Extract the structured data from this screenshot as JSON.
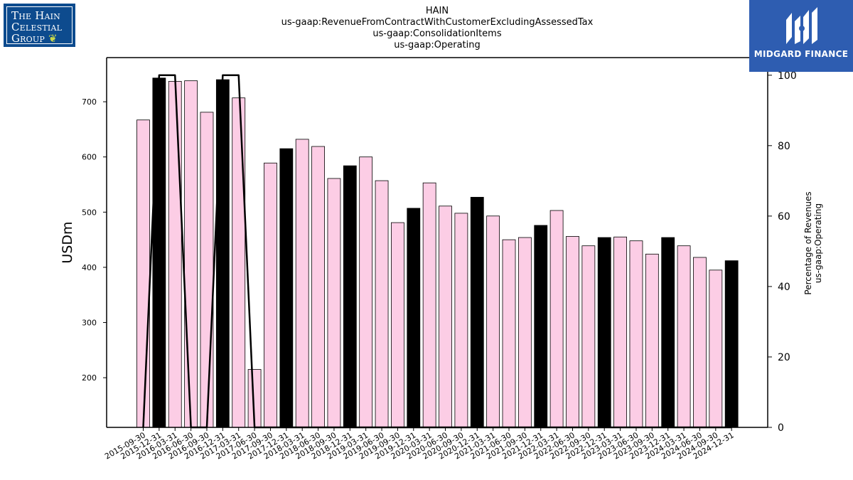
{
  "header": {
    "title_lines": [
      "HAIN",
      "us-gaap:RevenueFromContractWithCustomerExcludingAssessedTax",
      "us-gaap:ConsolidationItems",
      "us-gaap:Operating"
    ]
  },
  "logos": {
    "left_lines": [
      "The Hain",
      "Celestial",
      "Group"
    ],
    "right_text": "MIDGARD FINANCE"
  },
  "colors": {
    "bar_pink": "#fccde5",
    "bar_black": "#000000",
    "line": "#000000",
    "logo_left_bg": "#0d4b8e",
    "logo_right_bg": "#2e5db1"
  },
  "chart_data": {
    "type": "bar",
    "categories": [
      "2015-09-30",
      "2015-12-31",
      "2016-03-31",
      "2016-06-30",
      "2016-09-30",
      "2016-12-31",
      "2017-03-31",
      "2017-06-30",
      "2017-09-30",
      "2017-12-31",
      "2018-03-31",
      "2018-06-30",
      "2018-09-30",
      "2018-12-31",
      "2019-03-31",
      "2019-06-30",
      "2019-09-30",
      "2019-12-31",
      "2020-03-31",
      "2020-06-30",
      "2020-09-30",
      "2020-12-31",
      "2021-03-31",
      "2021-06-30",
      "2021-09-30",
      "2021-12-31",
      "2022-03-31",
      "2022-06-30",
      "2022-09-30",
      "2022-12-31",
      "2023-03-31",
      "2023-06-30",
      "2023-09-30",
      "2023-12-31",
      "2024-03-31",
      "2024-06-30",
      "2024-09-30",
      "2024-12-31"
    ],
    "series": [
      {
        "values": [
          667,
          743,
          737,
          738,
          681,
          740,
          707,
          215,
          589,
          615,
          632,
          619,
          561,
          584,
          600,
          557,
          481,
          507,
          553,
          511,
          498,
          527,
          493,
          450,
          454,
          476,
          503,
          456,
          439,
          454,
          455,
          448,
          424,
          454,
          439,
          418,
          395,
          412
        ],
        "highlight": [
          false,
          true,
          false,
          false,
          false,
          true,
          false,
          false,
          false,
          true,
          false,
          false,
          false,
          true,
          false,
          false,
          false,
          true,
          false,
          false,
          false,
          true,
          false,
          false,
          false,
          true,
          false,
          false,
          false,
          true,
          false,
          false,
          false,
          true,
          false,
          false,
          false,
          true
        ]
      },
      {
        "values": [
          0,
          100,
          100,
          0,
          0,
          100,
          100,
          0,
          0,
          0,
          0,
          0,
          0,
          0,
          0,
          0,
          0,
          0,
          0,
          0,
          0,
          0,
          0,
          0,
          0,
          0,
          0,
          0,
          0,
          0,
          0,
          0,
          0,
          0,
          0,
          0,
          0,
          0
        ],
        "axis": "right"
      }
    ],
    "ylabel": "USDm",
    "ylabel_right": [
      "Percentage of Revenues",
      "us-gaap:Operating"
    ],
    "ylim": [
      110,
      780
    ],
    "ylim_right": [
      0,
      105
    ],
    "yticks": [
      200,
      300,
      400,
      500,
      600,
      700
    ],
    "yticks_right": [
      0,
      20,
      40,
      60,
      80,
      100
    ],
    "grid": false
  }
}
